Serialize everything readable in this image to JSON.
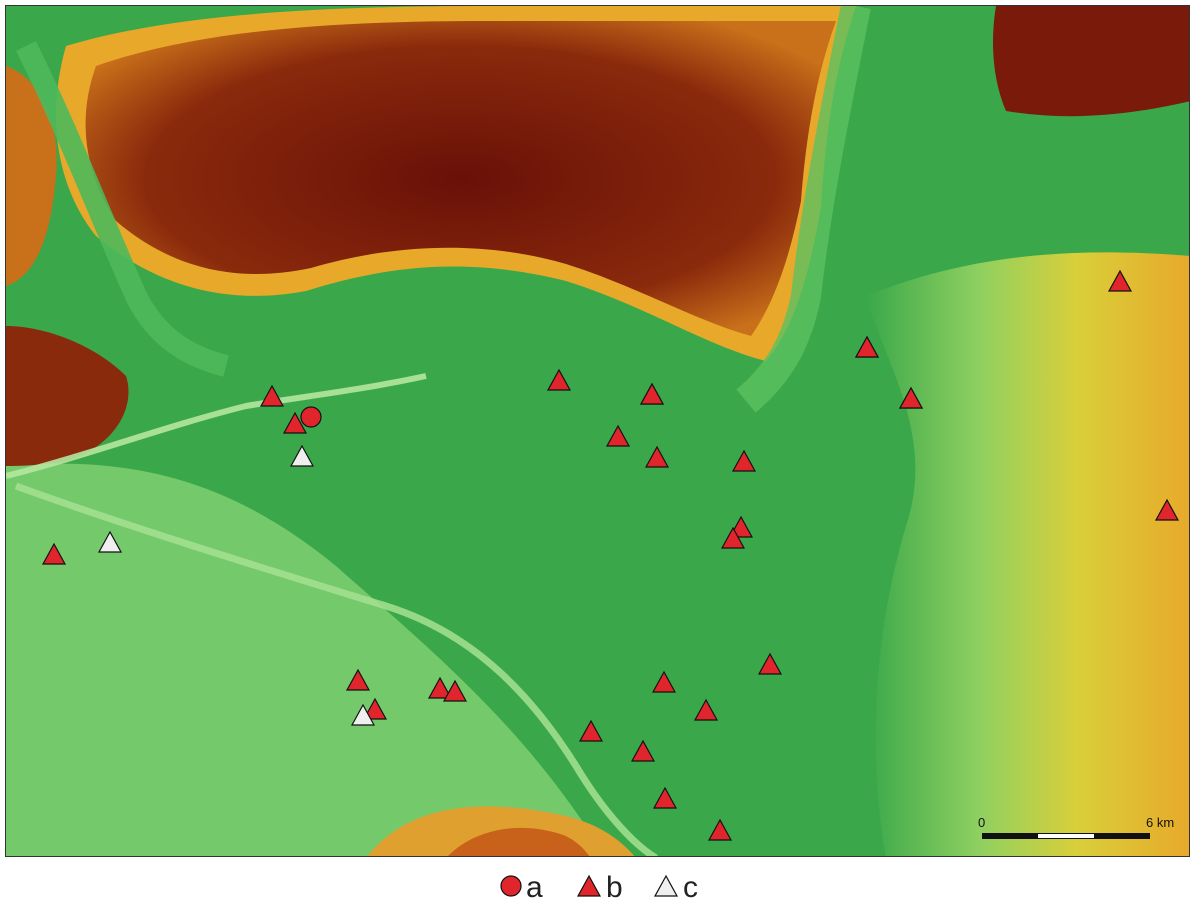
{
  "map": {
    "colors": {
      "lowland": "#3aa84a",
      "lowland_light": "#7fcf70",
      "water": "#9fdc8e",
      "midland": "#c9d84a",
      "upland": "#e8a92a",
      "highland": "#7a1a0a",
      "marker_red": "#e0262c",
      "marker_white": "#efefef"
    },
    "scale_bar": {
      "start_label": "0",
      "end_label": "6 km"
    },
    "sites": [
      {
        "type": "a"
      },
      {
        "type": "b"
      },
      {
        "type": "b"
      },
      {
        "type": "b"
      },
      {
        "type": "b"
      },
      {
        "type": "b"
      },
      {
        "type": "b"
      },
      {
        "type": "b"
      },
      {
        "type": "b"
      },
      {
        "type": "b"
      },
      {
        "type": "b"
      },
      {
        "type": "b"
      },
      {
        "type": "b"
      },
      {
        "type": "b"
      },
      {
        "type": "b"
      },
      {
        "type": "b"
      },
      {
        "type": "b"
      },
      {
        "type": "b"
      },
      {
        "type": "b"
      },
      {
        "type": "b"
      },
      {
        "type": "b"
      },
      {
        "type": "b"
      },
      {
        "type": "b"
      },
      {
        "type": "b"
      },
      {
        "type": "b"
      },
      {
        "type": "b"
      },
      {
        "type": "b"
      },
      {
        "type": "b"
      },
      {
        "type": "b"
      },
      {
        "type": "c"
      },
      {
        "type": "c"
      },
      {
        "type": "c"
      },
      {
        "type": "c"
      }
    ]
  },
  "legend": {
    "items": [
      {
        "symbol": "circle-red",
        "label": "a"
      },
      {
        "symbol": "triangle-red",
        "label": "b"
      },
      {
        "symbol": "triangle-white",
        "label": "c"
      }
    ]
  }
}
